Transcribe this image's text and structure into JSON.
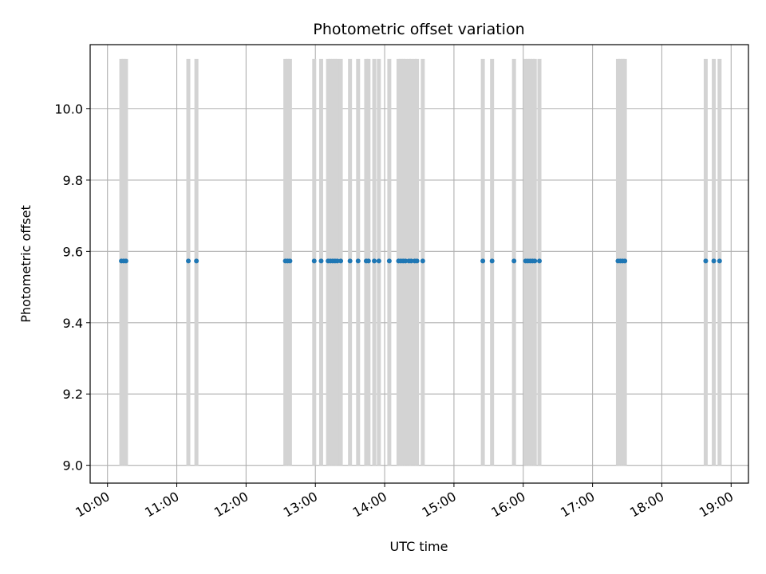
{
  "chart_data": {
    "type": "scatter",
    "title": "Photometric offset variation",
    "xlabel": "UTC time",
    "ylabel": "Photometric offset",
    "x_axis": {
      "type": "time",
      "range": [
        "09:45",
        "19:15"
      ],
      "ticks": [
        "10:00",
        "11:00",
        "12:00",
        "13:00",
        "14:00",
        "15:00",
        "16:00",
        "17:00",
        "18:00",
        "19:00"
      ]
    },
    "y_axis": {
      "range": [
        8.95,
        10.18
      ],
      "ticks": [
        "9.0",
        "9.2",
        "9.4",
        "9.6",
        "9.8",
        "10.0"
      ]
    },
    "grid": true,
    "colors": {
      "points": "#1f77b4",
      "bands": "#d3d3d3",
      "grid": "#b0b0b0"
    },
    "band_range": [
      9.0,
      10.14
    ],
    "bands": [
      "10:12",
      "10:14",
      "10:16",
      "11:10",
      "11:17",
      "12:34",
      "12:36",
      "12:38",
      "12:59",
      "13:05",
      "13:11",
      "13:13",
      "13:15",
      "13:17",
      "13:19",
      "13:22",
      "13:30",
      "13:37",
      "13:44",
      "13:46",
      "13:51",
      "13:55",
      "14:04",
      "14:12",
      "14:14",
      "14:16",
      "14:18",
      "14:21",
      "14:23",
      "14:26",
      "14:28",
      "14:33",
      "15:25",
      "15:33",
      "15:52",
      "16:02",
      "16:04",
      "16:06",
      "16:08",
      "16:10",
      "16:14",
      "17:22",
      "17:24",
      "17:26",
      "17:28",
      "18:38",
      "18:45",
      "18:50"
    ],
    "series": [
      {
        "x": [
          "10:12",
          "10:14",
          "10:16",
          "11:10",
          "11:17",
          "12:34",
          "12:36",
          "12:38",
          "12:59",
          "13:05",
          "13:11",
          "13:13",
          "13:15",
          "13:17",
          "13:19",
          "13:22",
          "13:30",
          "13:37",
          "13:44",
          "13:46",
          "13:51",
          "13:55",
          "14:04",
          "14:12",
          "14:14",
          "14:16",
          "14:18",
          "14:21",
          "14:23",
          "14:26",
          "14:28",
          "14:33",
          "15:25",
          "15:33",
          "15:52",
          "16:02",
          "16:04",
          "16:06",
          "16:08",
          "16:10",
          "16:14",
          "17:22",
          "17:24",
          "17:26",
          "17:28",
          "18:38",
          "18:45",
          "18:50"
        ],
        "y": [
          9.573,
          9.573,
          9.573,
          9.573,
          9.573,
          9.573,
          9.573,
          9.573,
          9.573,
          9.573,
          9.573,
          9.573,
          9.573,
          9.573,
          9.573,
          9.573,
          9.573,
          9.573,
          9.573,
          9.573,
          9.573,
          9.573,
          9.573,
          9.573,
          9.573,
          9.573,
          9.573,
          9.573,
          9.573,
          9.573,
          9.573,
          9.573,
          9.573,
          9.573,
          9.573,
          9.573,
          9.573,
          9.573,
          9.573,
          9.573,
          9.573,
          9.573,
          9.573,
          9.573,
          9.573,
          9.573,
          9.573,
          9.573
        ]
      }
    ]
  }
}
